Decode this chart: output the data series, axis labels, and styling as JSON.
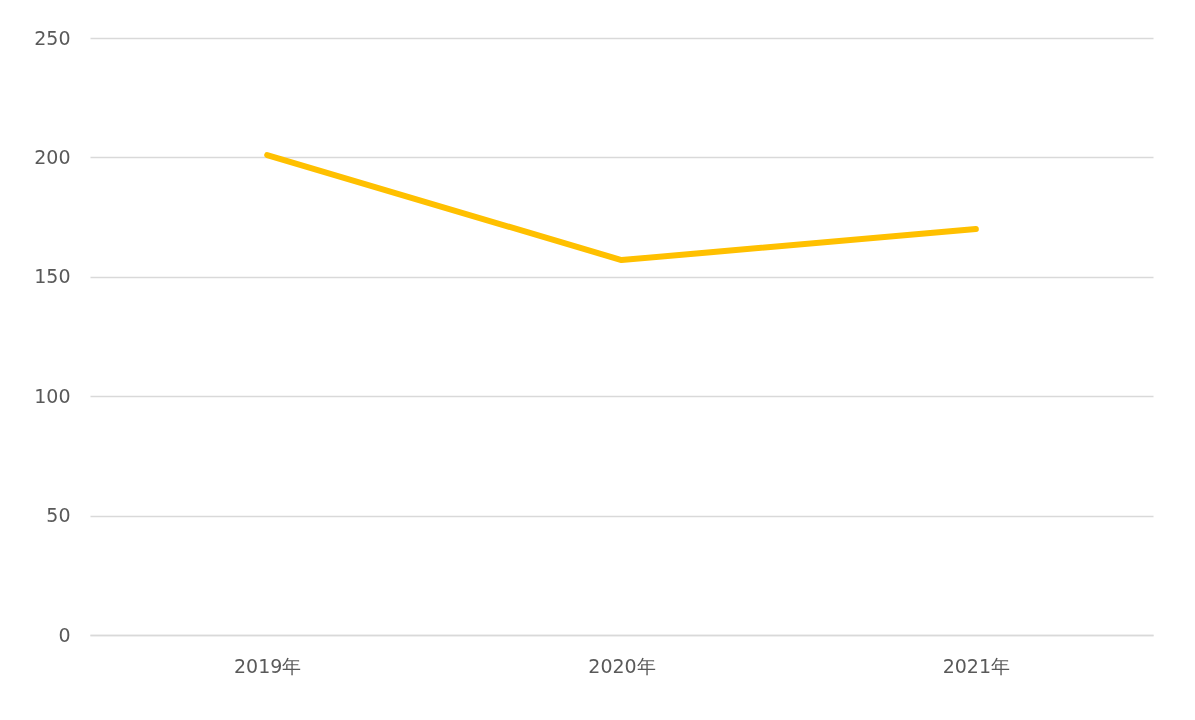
{
  "chart_data": {
    "type": "line",
    "categories": [
      "2019年",
      "2020年",
      "2021年"
    ],
    "series": [
      {
        "color": "#ffc000",
        "values": [
          201,
          157,
          170
        ]
      }
    ],
    "ylim": [
      0,
      250
    ],
    "yticks": [
      0,
      50,
      100,
      150,
      200,
      250
    ],
    "grid": "y",
    "line_style": "solid"
  }
}
